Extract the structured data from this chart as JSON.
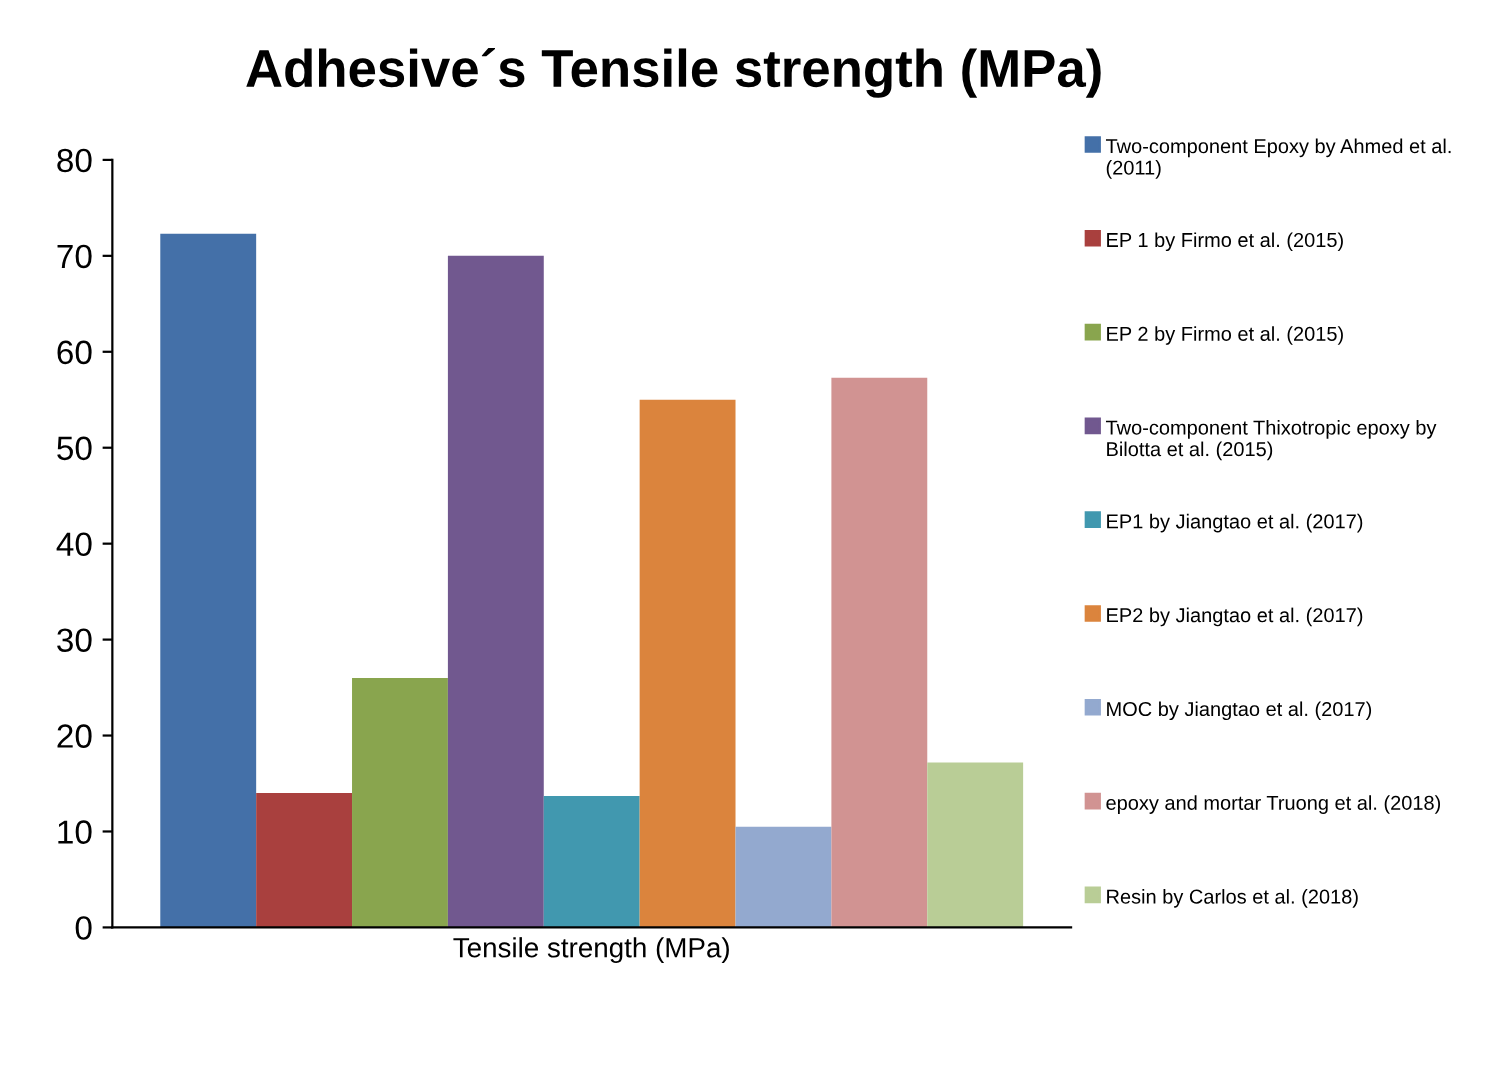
{
  "chart_data": {
    "type": "bar",
    "title": "Adhesive´s Tensile strength (MPa)",
    "categories": [
      "Tensile strength (MPa)"
    ],
    "ylim": [
      0,
      80
    ],
    "yticks": [
      0,
      10,
      20,
      30,
      40,
      50,
      60,
      70,
      80
    ],
    "grid": false,
    "legend": "right",
    "series": [
      {
        "name": "Two-component Epoxy by Ahmed et al. (2011)",
        "color": "#4470a8",
        "values": [
          72.3
        ]
      },
      {
        "name": "EP 1 by Firmo et al. (2015)",
        "color": "#a9403e",
        "values": [
          14
        ]
      },
      {
        "name": "EP 2 by Firmo et al. (2015)",
        "color": "#89a54e",
        "values": [
          26
        ]
      },
      {
        "name": "Two-component Thixotropic epoxy by Bilotta et al. (2015)",
        "color": "#71588f",
        "values": [
          70
        ]
      },
      {
        "name": "EP1 by Jiangtao et al. (2017)",
        "color": "#4198af",
        "values": [
          13.7
        ]
      },
      {
        "name": "EP2 by Jiangtao et al. (2017)",
        "color": "#db843d",
        "values": [
          55
        ]
      },
      {
        "name": "MOC by Jiangtao et al. (2017)",
        "color": "#93a9cf",
        "values": [
          10.5
        ]
      },
      {
        "name": "epoxy and mortar Truong et al. (2018)",
        "color": "#d19392",
        "values": [
          57.3
        ]
      },
      {
        "name": "Resin by Carlos et al. (2018)",
        "color": "#b9cd96",
        "values": [
          17.2
        ]
      }
    ]
  }
}
